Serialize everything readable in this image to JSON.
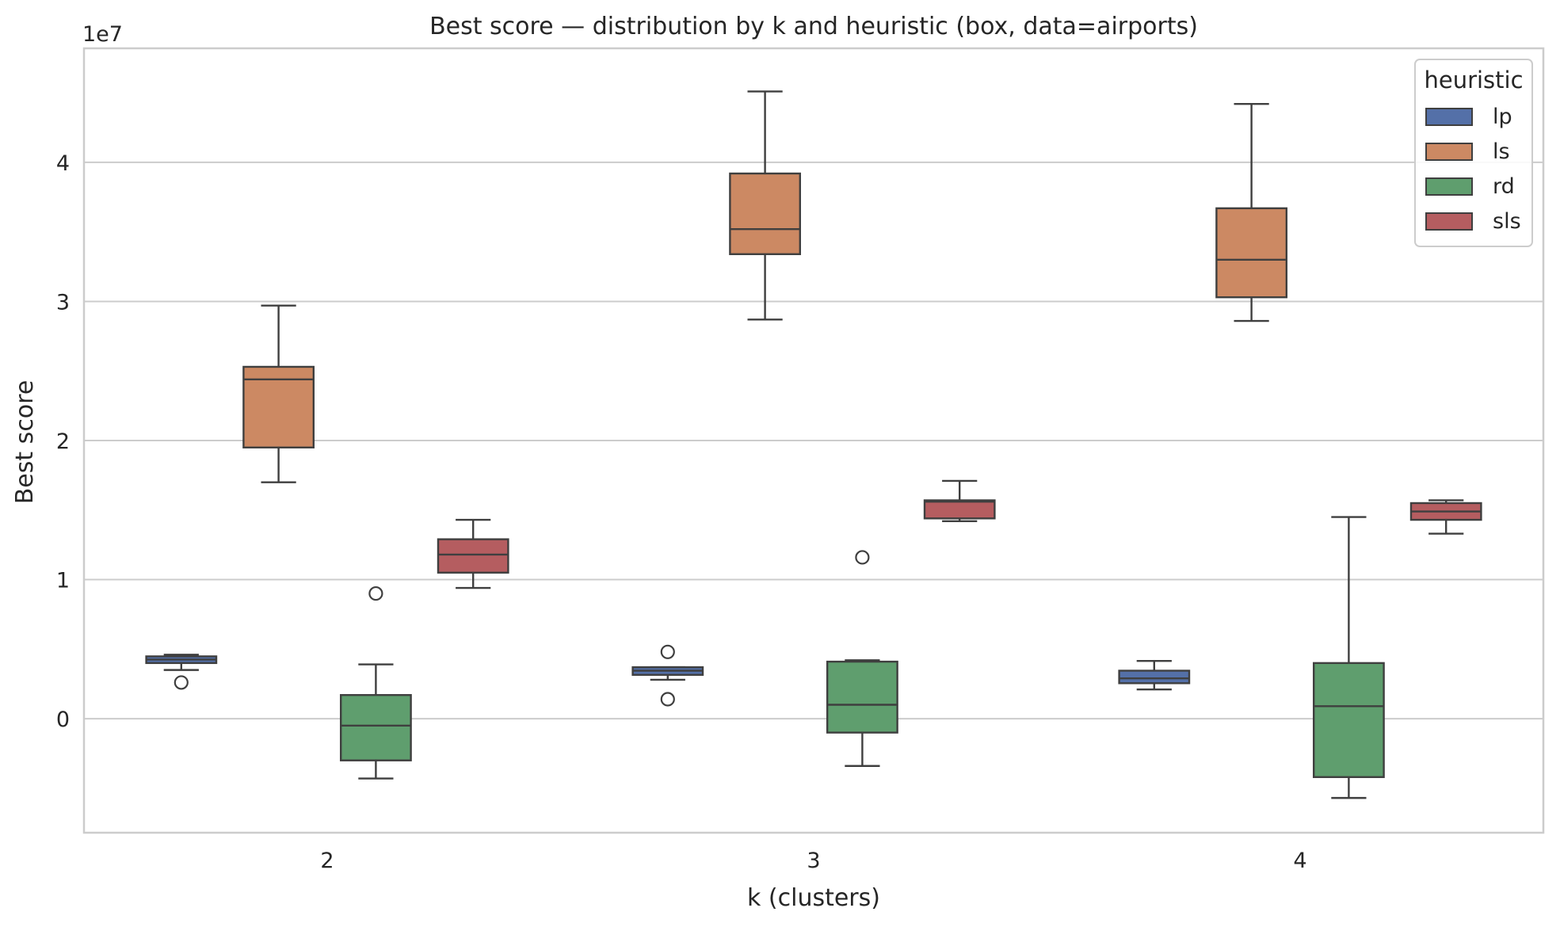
{
  "chart_data": {
    "type": "box",
    "title": "Best score — distribution by k and heuristic (box, data=airports)",
    "xlabel": "k (clusters)",
    "ylabel": "Best score",
    "y_scale_label": "1e7",
    "y_scale_factor": 10000000,
    "ylim": [
      -8200000,
      48200000
    ],
    "y_ticks": [
      0,
      10000000,
      20000000,
      30000000,
      40000000
    ],
    "y_tick_labels": [
      "0",
      "1",
      "2",
      "3",
      "4"
    ],
    "grid": true,
    "categories": [
      "2",
      "3",
      "4"
    ],
    "legend": {
      "title": "heuristic",
      "position": "top-right"
    },
    "series": [
      {
        "name": "lp",
        "color": "#5470a8",
        "boxes": [
          {
            "category": "2",
            "whisker_low": 3500000,
            "q1": 4000000,
            "median": 4250000,
            "q3": 4480000,
            "whisker_high": 4600000,
            "outliers": [
              2600000
            ]
          },
          {
            "category": "3",
            "whisker_low": 2800000,
            "q1": 3150000,
            "median": 3450000,
            "q3": 3700000,
            "whisker_high": 3700000,
            "outliers": [
              4800000,
              1400000
            ]
          },
          {
            "category": "4",
            "whisker_low": 2100000,
            "q1": 2550000,
            "median": 2900000,
            "q3": 3450000,
            "whisker_high": 4150000,
            "outliers": []
          }
        ]
      },
      {
        "name": "ls",
        "color": "#cc8963",
        "boxes": [
          {
            "category": "2",
            "whisker_low": 17000000,
            "q1": 19500000,
            "median": 24400000,
            "q3": 25300000,
            "whisker_high": 29700000,
            "outliers": []
          },
          {
            "category": "3",
            "whisker_low": 28700000,
            "q1": 33400000,
            "median": 35200000,
            "q3": 39200000,
            "whisker_high": 45100000,
            "outliers": []
          },
          {
            "category": "4",
            "whisker_low": 28600000,
            "q1": 30300000,
            "median": 33000000,
            "q3": 36700000,
            "whisker_high": 44200000,
            "outliers": []
          }
        ]
      },
      {
        "name": "rd",
        "color": "#5f9e6e",
        "boxes": [
          {
            "category": "2",
            "whisker_low": -4300000,
            "q1": -3000000,
            "median": -500000,
            "q3": 1700000,
            "whisker_high": 3900000,
            "outliers": [
              9000000
            ]
          },
          {
            "category": "3",
            "whisker_low": -3400000,
            "q1": -1000000,
            "median": 1000000,
            "q3": 4100000,
            "whisker_high": 4200000,
            "outliers": [
              11600000
            ]
          },
          {
            "category": "4",
            "whisker_low": -5700000,
            "q1": -4200000,
            "median": 900000,
            "q3": 4000000,
            "whisker_high": 14500000,
            "outliers": []
          }
        ]
      },
      {
        "name": "sls",
        "color": "#b55d60",
        "boxes": [
          {
            "category": "2",
            "whisker_low": 9400000,
            "q1": 10500000,
            "median": 11800000,
            "q3": 12900000,
            "whisker_high": 14300000,
            "outliers": []
          },
          {
            "category": "3",
            "whisker_low": 14200000,
            "q1": 14400000,
            "median": 15600000,
            "q3": 15700000,
            "whisker_high": 17100000,
            "outliers": []
          },
          {
            "category": "4",
            "whisker_low": 13300000,
            "q1": 14300000,
            "median": 14900000,
            "q3": 15500000,
            "whisker_high": 15700000,
            "outliers": []
          }
        ]
      }
    ]
  }
}
